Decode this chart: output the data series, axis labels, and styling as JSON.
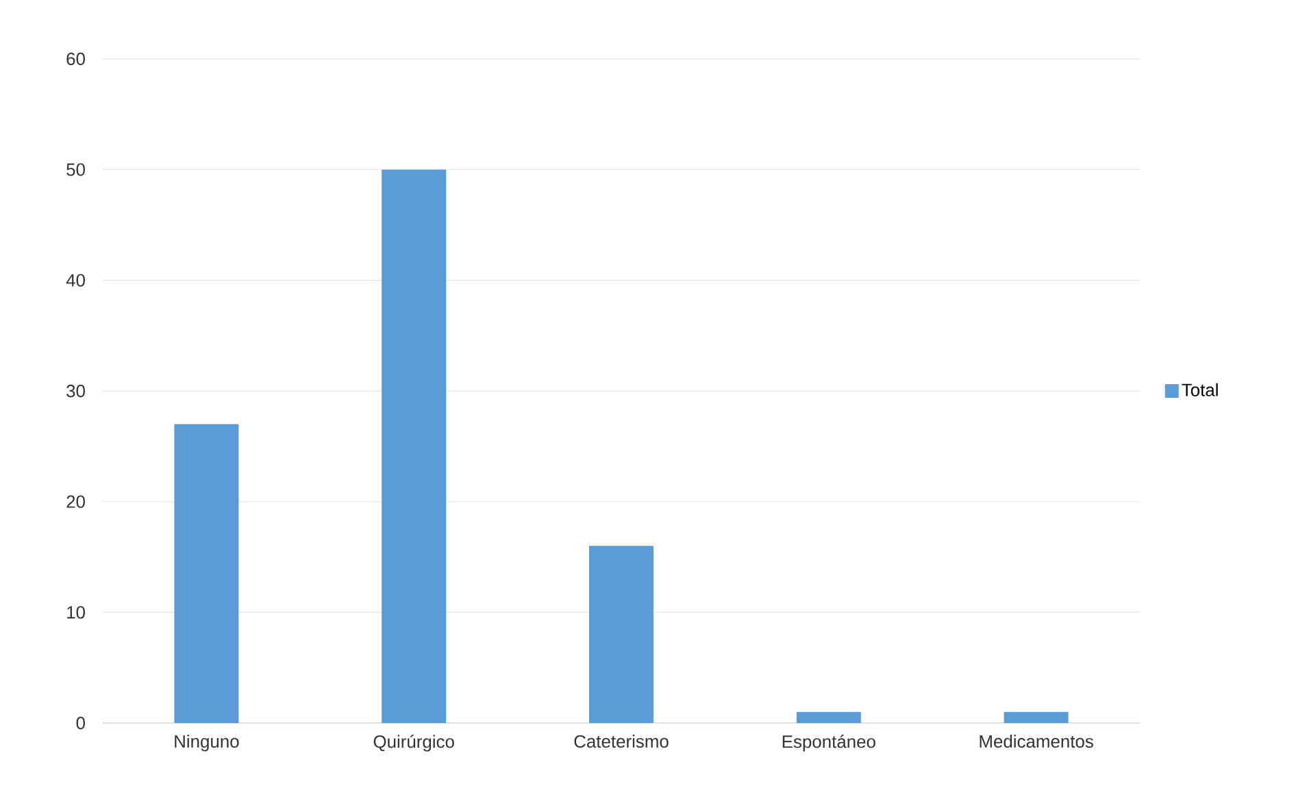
{
  "chart_data": {
    "type": "bar",
    "categories": [
      "Ninguno",
      "Quirúrgico",
      "Cateterismo",
      "Espontáneo",
      "Medicamentos"
    ],
    "series": [
      {
        "name": "Total",
        "color": "#5b9bd5",
        "values": [
          27,
          50,
          16,
          1,
          1
        ]
      }
    ],
    "ylim": [
      0,
      60
    ],
    "yticks": [
      0,
      10,
      20,
      30,
      40,
      50,
      60
    ],
    "grid": "y",
    "legend": "right"
  }
}
